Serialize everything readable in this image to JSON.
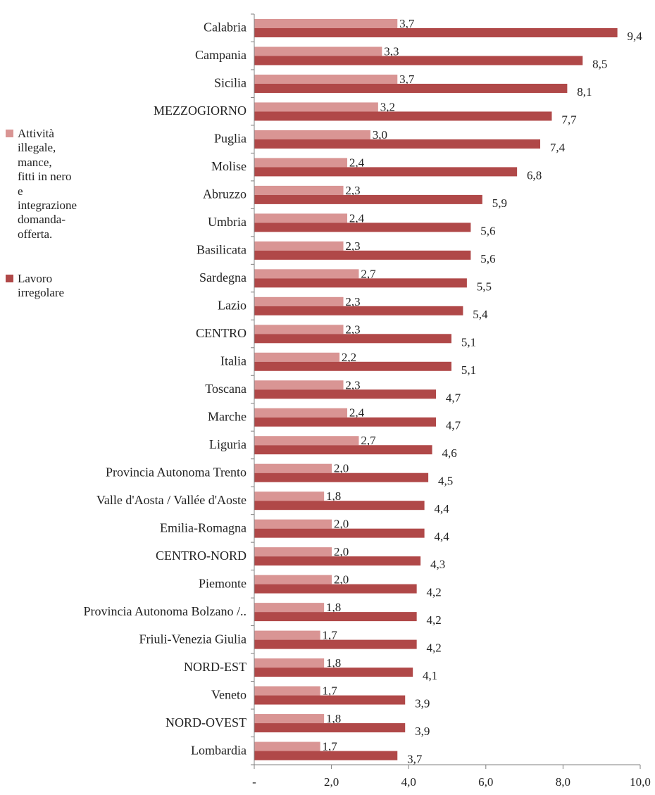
{
  "chart_data": {
    "type": "bar",
    "orientation": "horizontal",
    "categories": [
      "Calabria",
      "Campania",
      "Sicilia",
      "MEZZOGIORNO",
      "Puglia",
      "Molise",
      "Abruzzo",
      "Umbria",
      "Basilicata",
      "Sardegna",
      "Lazio",
      "CENTRO",
      "Italia",
      "Toscana",
      "Marche",
      "Liguria",
      "Provincia Autonoma Trento",
      "Valle d'Aosta / Vallée d'Aoste",
      "Emilia-Romagna",
      "CENTRO-NORD",
      "Piemonte",
      "Provincia Autonoma Bolzano /..",
      "Friuli-Venezia Giulia",
      "NORD-EST",
      "Veneto",
      "NORD-OVEST",
      "Lombardia"
    ],
    "series": [
      {
        "name": "Attività illegale, mance, fitti in nero e integrazione domanda-offerta.",
        "color": "#d99594",
        "values": [
          3.7,
          3.3,
          3.7,
          3.2,
          3.0,
          2.4,
          2.3,
          2.4,
          2.3,
          2.7,
          2.3,
          2.3,
          2.2,
          2.3,
          2.4,
          2.7,
          2.0,
          1.8,
          2.0,
          2.0,
          2.0,
          1.8,
          1.7,
          1.8,
          1.7,
          1.8,
          1.7
        ],
        "data_labels": [
          "3,7",
          "3,3",
          "3,7",
          "3,2",
          "3,0",
          "2,4",
          "2,3",
          "2,4",
          "2,3",
          "2,7",
          "2,3",
          "2,3",
          "2,2",
          "2,3",
          "2,4",
          "2,7",
          "2,0",
          "1,8",
          "2,0",
          "2,0",
          "2,0",
          "1,8",
          "1,7",
          "1,8",
          "1,7",
          "1,8",
          "1,7"
        ]
      },
      {
        "name": "Lavoro irregolare",
        "color": "#b04848",
        "values": [
          9.4,
          8.5,
          8.1,
          7.7,
          7.4,
          6.8,
          5.9,
          5.6,
          5.6,
          5.5,
          5.4,
          5.1,
          5.1,
          4.7,
          4.7,
          4.6,
          4.5,
          4.4,
          4.4,
          4.3,
          4.2,
          4.2,
          4.2,
          4.1,
          3.9,
          3.9,
          3.7
        ],
        "data_labels": [
          "9,4",
          "8,5",
          "8,1",
          "7,7",
          "7,4",
          "6,8",
          "5,9",
          "5,6",
          "5,6",
          "5,5",
          "5,4",
          "5,1",
          "5,1",
          "4,7",
          "4,7",
          "4,6",
          "4,5",
          "4,4",
          "4,4",
          "4,3",
          "4,2",
          "4,2",
          "4,2",
          "4,1",
          "3,9",
          "3,9",
          "3,7"
        ]
      }
    ],
    "xlim": [
      0,
      10
    ],
    "xticks": [
      0,
      2,
      4,
      6,
      8,
      10
    ],
    "xtick_labels": [
      "-",
      "2,0",
      "4,0",
      "6,0",
      "8,0",
      "10,0"
    ],
    "grid": false,
    "legend_position": "left",
    "title": "",
    "xlabel": "",
    "ylabel": ""
  },
  "legend": {
    "items": [
      {
        "label": "Attività\nillegale, mance,\n fitti in nero e\nintegrazione\ndomanda-\nofferta.",
        "color": "#d99594"
      },
      {
        "label": "Lavoro\nirregolare",
        "color": "#b04848"
      }
    ]
  }
}
